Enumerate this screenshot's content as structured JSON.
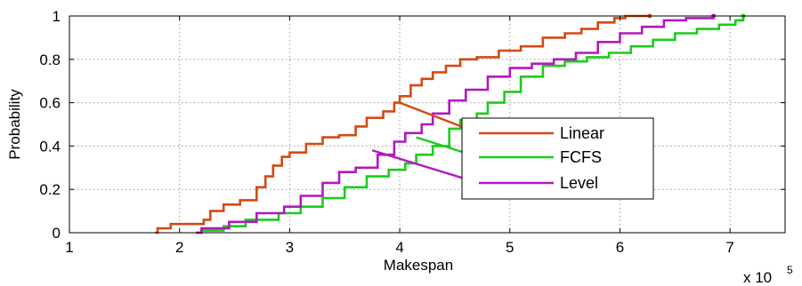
{
  "chart_data": {
    "type": "line",
    "xlabel": "Makespan",
    "ylabel": "Probability",
    "x_multiplier": "x 10",
    "x_multiplier_exp": "5",
    "xlim": [
      1,
      7.5
    ],
    "ylim": [
      0,
      1
    ],
    "xticks": [
      1,
      2,
      3,
      4,
      5,
      6,
      7
    ],
    "yticks": [
      0,
      0.2,
      0.4,
      0.6,
      0.8,
      1
    ],
    "grid": true,
    "legend_position": "center-right",
    "series": [
      {
        "name": "Linear",
        "color": "#d34a13",
        "x": [
          1.78,
          1.8,
          1.92,
          2.22,
          2.28,
          2.4,
          2.55,
          2.7,
          2.78,
          2.85,
          2.93,
          3.0,
          3.15,
          3.3,
          3.45,
          3.6,
          3.7,
          3.85,
          3.95,
          4.0,
          4.1,
          4.2,
          4.3,
          4.42,
          4.55,
          4.7,
          4.9,
          5.1,
          5.3,
          5.5,
          5.65,
          5.8,
          5.95,
          6.05,
          6.27
        ],
        "y": [
          0.0,
          0.02,
          0.04,
          0.06,
          0.1,
          0.13,
          0.15,
          0.21,
          0.26,
          0.31,
          0.35,
          0.37,
          0.41,
          0.44,
          0.45,
          0.49,
          0.53,
          0.56,
          0.6,
          0.63,
          0.68,
          0.71,
          0.74,
          0.77,
          0.8,
          0.81,
          0.84,
          0.86,
          0.9,
          0.92,
          0.94,
          0.97,
          0.99,
          1.0,
          1.0
        ]
      },
      {
        "name": "FCFS",
        "color": "#1bcc1b",
        "x": [
          2.15,
          2.2,
          2.4,
          2.6,
          2.9,
          3.1,
          3.3,
          3.5,
          3.7,
          3.9,
          4.05,
          4.15,
          4.3,
          4.45,
          4.55,
          4.7,
          4.8,
          4.95,
          5.1,
          5.3,
          5.5,
          5.7,
          5.9,
          6.1,
          6.3,
          6.5,
          6.7,
          6.9,
          7.05,
          7.12
        ],
        "y": [
          0.0,
          0.01,
          0.03,
          0.06,
          0.09,
          0.12,
          0.16,
          0.21,
          0.26,
          0.29,
          0.32,
          0.36,
          0.4,
          0.48,
          0.52,
          0.55,
          0.6,
          0.65,
          0.72,
          0.77,
          0.79,
          0.81,
          0.83,
          0.86,
          0.89,
          0.92,
          0.94,
          0.96,
          0.98,
          1.0
        ]
      },
      {
        "name": "Level",
        "color": "#b218c0",
        "x": [
          2.15,
          2.2,
          2.45,
          2.7,
          2.95,
          3.1,
          3.3,
          3.45,
          3.6,
          3.8,
          3.95,
          4.05,
          4.2,
          4.3,
          4.45,
          4.6,
          4.8,
          5.0,
          5.2,
          5.4,
          5.6,
          5.8,
          6.0,
          6.2,
          6.4,
          6.6,
          6.85
        ],
        "y": [
          0.0,
          0.02,
          0.05,
          0.09,
          0.12,
          0.17,
          0.23,
          0.28,
          0.3,
          0.36,
          0.42,
          0.46,
          0.5,
          0.55,
          0.61,
          0.66,
          0.72,
          0.76,
          0.78,
          0.8,
          0.83,
          0.88,
          0.92,
          0.95,
          0.98,
          0.99,
          1.0
        ]
      }
    ]
  }
}
